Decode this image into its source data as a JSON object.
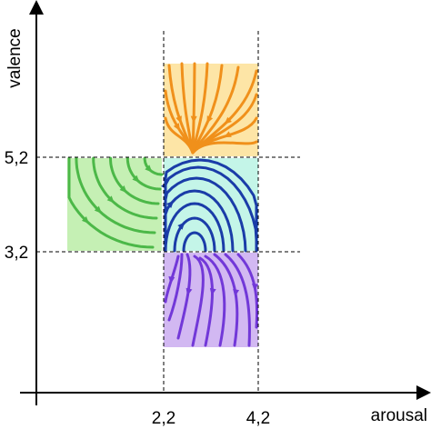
{
  "axes": {
    "x_label": "arousal",
    "y_label": "valence",
    "x_ticks": [
      "2,2",
      "4,2"
    ],
    "y_ticks": [
      "5,2",
      "3,2"
    ]
  },
  "regions": [
    {
      "id": "top",
      "fill": "#fde5a6",
      "stroke": "#f0901b"
    },
    {
      "id": "left",
      "fill": "#c5f0b4",
      "stroke": "#4cb848"
    },
    {
      "id": "center",
      "fill": "#c4f5e8",
      "stroke": "#1a3ca8"
    },
    {
      "id": "bottom",
      "fill": "#d2b8f2",
      "stroke": "#7238d8"
    }
  ]
}
